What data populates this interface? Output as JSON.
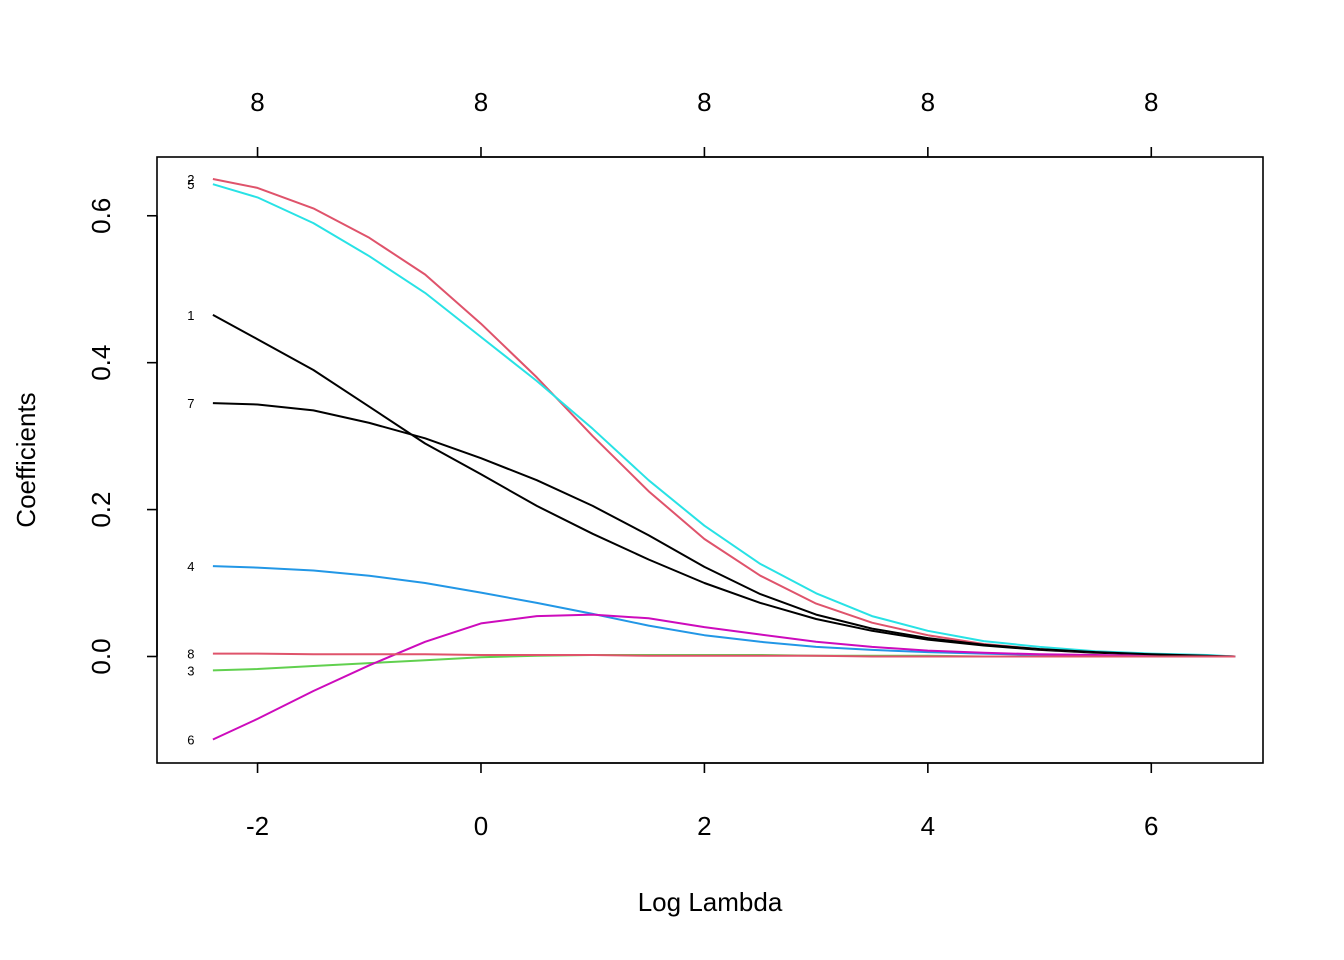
{
  "chart_data": {
    "type": "line",
    "title": "",
    "xlabel": "Log Lambda",
    "ylabel": "Coefficients",
    "xlim": [
      -2.9,
      7.0
    ],
    "ylim": [
      -0.145,
      0.68
    ],
    "x_ticks": [
      -2,
      0,
      2,
      4,
      6
    ],
    "x_tick_labels": [
      "-2",
      "0",
      "2",
      "4",
      "6"
    ],
    "y_ticks": [
      0.0,
      0.2,
      0.4,
      0.6
    ],
    "y_tick_labels": [
      "0.0",
      "0.2",
      "0.4",
      "0.6"
    ],
    "top_axis": {
      "ticks": [
        -2,
        0,
        2,
        4,
        6
      ],
      "labels": [
        "8",
        "8",
        "8",
        "8",
        "8"
      ]
    },
    "grid": false,
    "legend": "none",
    "x": [
      -2.4,
      -2.0,
      -1.5,
      -1.0,
      -0.5,
      0.0,
      0.5,
      1.0,
      1.5,
      2.0,
      2.5,
      3.0,
      3.5,
      4.0,
      4.5,
      5.0,
      5.5,
      6.0,
      6.5,
      6.75
    ],
    "series": [
      {
        "name": "1",
        "color": "#000000",
        "values": [
          0.465,
          0.432,
          0.39,
          0.34,
          0.29,
          0.248,
          0.205,
          0.167,
          0.132,
          0.1,
          0.073,
          0.051,
          0.035,
          0.023,
          0.015,
          0.009,
          0.005,
          0.003,
          0.001,
          0.0
        ]
      },
      {
        "name": "2",
        "color": "#DF536B",
        "values": [
          0.65,
          0.638,
          0.61,
          0.57,
          0.52,
          0.453,
          0.38,
          0.3,
          0.225,
          0.16,
          0.11,
          0.072,
          0.046,
          0.029,
          0.017,
          0.01,
          0.006,
          0.003,
          0.001,
          0.0
        ]
      },
      {
        "name": "3",
        "color": "#61D04F",
        "values": [
          -0.019,
          -0.017,
          -0.013,
          -0.009,
          -0.005,
          -0.001,
          0.001,
          0.002,
          0.002,
          0.002,
          0.002,
          0.001,
          0.001,
          0.001,
          0.0,
          0.0,
          0.0,
          0.0,
          0.0,
          0.0
        ]
      },
      {
        "name": "4",
        "color": "#2297E6",
        "values": [
          0.123,
          0.121,
          0.117,
          0.11,
          0.1,
          0.087,
          0.073,
          0.058,
          0.042,
          0.029,
          0.02,
          0.013,
          0.009,
          0.006,
          0.004,
          0.002,
          0.001,
          0.001,
          0.0,
          0.0
        ]
      },
      {
        "name": "5",
        "color": "#28E2E5",
        "values": [
          0.643,
          0.625,
          0.59,
          0.545,
          0.495,
          0.435,
          0.375,
          0.31,
          0.24,
          0.178,
          0.126,
          0.086,
          0.055,
          0.035,
          0.021,
          0.013,
          0.007,
          0.004,
          0.002,
          0.0
        ]
      },
      {
        "name": "6",
        "color": "#CD0BBC",
        "values": [
          -0.113,
          -0.085,
          -0.047,
          -0.012,
          0.02,
          0.045,
          0.055,
          0.057,
          0.052,
          0.04,
          0.03,
          0.02,
          0.013,
          0.008,
          0.005,
          0.003,
          0.002,
          0.001,
          0.0,
          0.0
        ]
      },
      {
        "name": "7",
        "color": "#000000",
        "values": [
          0.345,
          0.343,
          0.335,
          0.318,
          0.297,
          0.27,
          0.24,
          0.205,
          0.165,
          0.122,
          0.085,
          0.057,
          0.038,
          0.025,
          0.016,
          0.01,
          0.006,
          0.003,
          0.001,
          0.0
        ]
      },
      {
        "name": "8",
        "color": "#DF536B",
        "values": [
          0.004,
          0.004,
          0.003,
          0.003,
          0.003,
          0.002,
          0.002,
          0.002,
          0.001,
          0.001,
          0.001,
          0.001,
          0.0,
          0.0,
          0.0,
          0.0,
          0.0,
          0.0,
          0.0,
          0.0
        ]
      }
    ]
  }
}
